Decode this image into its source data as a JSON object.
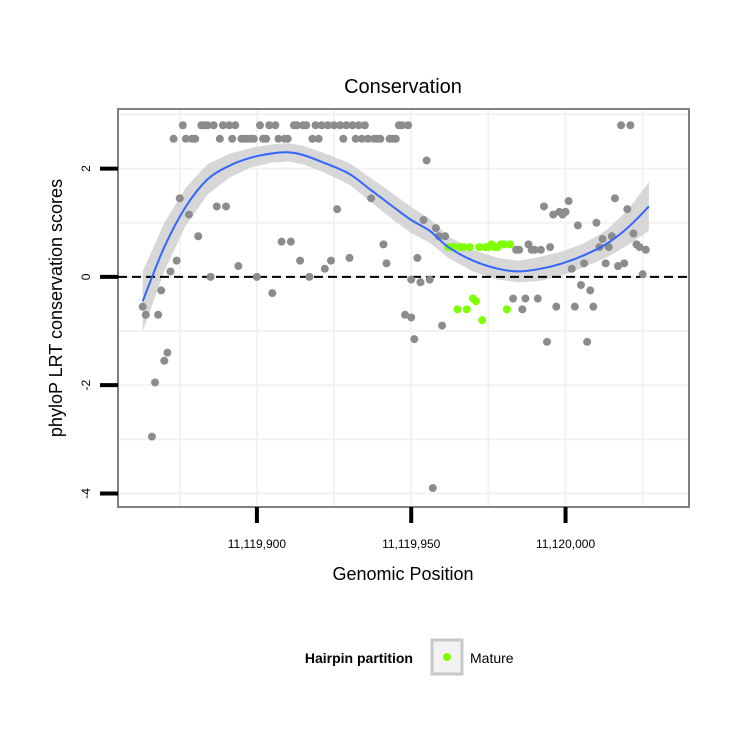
{
  "chart_data": {
    "type": "scatter",
    "title": "Conservation",
    "xlabel": "Genomic Position",
    "ylabel": "phyloP LRT conservation scores",
    "xlim": [
      11119855,
      11120040
    ],
    "ylim": [
      -4.25,
      3.1
    ],
    "x_ticks": [
      {
        "value": 11119900,
        "label": "11,119,900"
      },
      {
        "value": 11119950,
        "label": "11,119,950"
      },
      {
        "value": 11120000,
        "label": "11,120,000"
      }
    ],
    "y_ticks": [
      {
        "value": -4,
        "label": "-4"
      },
      {
        "value": -2,
        "label": "-2"
      },
      {
        "value": 0,
        "label": "0"
      },
      {
        "value": 2,
        "label": "2"
      }
    ],
    "hline": 0,
    "legend": {
      "title": "Hairpin partition",
      "entries": [
        {
          "label": "Mature",
          "color": "#7fff00"
        }
      ],
      "position": "bottom"
    },
    "colors": {
      "point": "#8c8c8c",
      "mature": "#7fff00",
      "smooth": "#3366ff",
      "band": "#d3d3d3",
      "grid": "#f2f2f2",
      "frame": "#808080"
    },
    "series": [
      {
        "name": "Other",
        "points": [
          [
            11119863,
            -0.55
          ],
          [
            11119864,
            -0.7
          ],
          [
            11119866,
            -2.95
          ],
          [
            11119867,
            -1.95
          ],
          [
            11119868,
            -0.7
          ],
          [
            11119869,
            -0.25
          ],
          [
            11119870,
            -1.55
          ],
          [
            11119871,
            -1.4
          ],
          [
            11119872,
            0.1
          ],
          [
            11119873,
            2.55
          ],
          [
            11119874,
            0.3
          ],
          [
            11119875,
            1.45
          ],
          [
            11119876,
            2.8
          ],
          [
            11119877,
            2.55
          ],
          [
            11119878,
            1.15
          ],
          [
            11119879,
            2.55
          ],
          [
            11119880,
            2.55
          ],
          [
            11119881,
            0.75
          ],
          [
            11119882,
            2.8
          ],
          [
            11119883,
            2.8
          ],
          [
            11119884,
            2.8
          ],
          [
            11119885,
            0.0
          ],
          [
            11119886,
            2.8
          ],
          [
            11119887,
            1.3
          ],
          [
            11119888,
            2.55
          ],
          [
            11119889,
            2.8
          ],
          [
            11119890,
            1.3
          ],
          [
            11119891,
            2.8
          ],
          [
            11119892,
            2.55
          ],
          [
            11119893,
            2.8
          ],
          [
            11119894,
            0.2
          ],
          [
            11119895,
            2.55
          ],
          [
            11119896,
            2.55
          ],
          [
            11119897,
            2.55
          ],
          [
            11119898,
            2.55
          ],
          [
            11119899,
            2.55
          ],
          [
            11119900,
            0.0
          ],
          [
            11119901,
            2.8
          ],
          [
            11119902,
            2.55
          ],
          [
            11119903,
            2.55
          ],
          [
            11119904,
            2.8
          ],
          [
            11119905,
            -0.3
          ],
          [
            11119906,
            2.8
          ],
          [
            11119907,
            2.55
          ],
          [
            11119908,
            0.65
          ],
          [
            11119909,
            2.55
          ],
          [
            11119910,
            2.55
          ],
          [
            11119911,
            0.65
          ],
          [
            11119912,
            2.8
          ],
          [
            11119913,
            2.8
          ],
          [
            11119914,
            0.3
          ],
          [
            11119915,
            2.8
          ],
          [
            11119916,
            2.8
          ],
          [
            11119917,
            0.0
          ],
          [
            11119918,
            2.55
          ],
          [
            11119919,
            2.8
          ],
          [
            11119920,
            2.55
          ],
          [
            11119921,
            2.8
          ],
          [
            11119922,
            0.15
          ],
          [
            11119923,
            2.8
          ],
          [
            11119924,
            0.3
          ],
          [
            11119925,
            2.8
          ],
          [
            11119926,
            1.25
          ],
          [
            11119927,
            2.8
          ],
          [
            11119928,
            2.55
          ],
          [
            11119929,
            2.8
          ],
          [
            11119930,
            0.35
          ],
          [
            11119931,
            2.8
          ],
          [
            11119932,
            2.55
          ],
          [
            11119933,
            2.8
          ],
          [
            11119934,
            2.55
          ],
          [
            11119935,
            2.8
          ],
          [
            11119936,
            2.55
          ],
          [
            11119937,
            1.45
          ],
          [
            11119938,
            2.55
          ],
          [
            11119939,
            2.55
          ],
          [
            11119940,
            2.55
          ],
          [
            11119941,
            0.6
          ],
          [
            11119942,
            0.25
          ],
          [
            11119943,
            2.55
          ],
          [
            11119944,
            2.55
          ],
          [
            11119945,
            2.55
          ],
          [
            11119946,
            2.8
          ],
          [
            11119947,
            2.8
          ],
          [
            11119948,
            -0.7
          ],
          [
            11119949,
            2.8
          ],
          [
            11119950,
            -0.75
          ],
          [
            11119950,
            -0.05
          ],
          [
            11119951,
            -1.15
          ],
          [
            11119952,
            0.35
          ],
          [
            11119953,
            -0.1
          ],
          [
            11119954,
            1.05
          ],
          [
            11119955,
            2.15
          ],
          [
            11119956,
            -0.05
          ],
          [
            11119957,
            -3.9
          ],
          [
            11119958,
            0.9
          ],
          [
            11119959,
            0.75
          ],
          [
            11119960,
            -0.9
          ],
          [
            11119961,
            0.75
          ],
          [
            11119983,
            -0.4
          ],
          [
            11119984,
            0.5
          ],
          [
            11119985,
            0.5
          ],
          [
            11119986,
            -0.6
          ],
          [
            11119987,
            -0.4
          ],
          [
            11119988,
            0.6
          ],
          [
            11119989,
            0.5
          ],
          [
            11119990,
            0.5
          ],
          [
            11119991,
            -0.4
          ],
          [
            11119992,
            0.5
          ],
          [
            11119993,
            1.3
          ],
          [
            11119994,
            -1.2
          ],
          [
            11119995,
            0.55
          ],
          [
            11119996,
            1.15
          ],
          [
            11119997,
            -0.55
          ],
          [
            11119998,
            1.2
          ],
          [
            11119999,
            1.15
          ],
          [
            11120000,
            1.2
          ],
          [
            11120001,
            1.4
          ],
          [
            11120002,
            0.15
          ],
          [
            11120003,
            -0.55
          ],
          [
            11120004,
            0.95
          ],
          [
            11120005,
            -0.15
          ],
          [
            11120006,
            0.25
          ],
          [
            11120007,
            -1.2
          ],
          [
            11120008,
            -0.25
          ],
          [
            11120009,
            -0.55
          ],
          [
            11120010,
            1.0
          ],
          [
            11120011,
            0.55
          ],
          [
            11120012,
            0.7
          ],
          [
            11120013,
            0.25
          ],
          [
            11120014,
            0.55
          ],
          [
            11120015,
            0.75
          ],
          [
            11120016,
            1.45
          ],
          [
            11120017,
            0.2
          ],
          [
            11120018,
            2.8
          ],
          [
            11120019,
            0.25
          ],
          [
            11120020,
            1.25
          ],
          [
            11120021,
            2.8
          ],
          [
            11120022,
            0.8
          ],
          [
            11120023,
            0.6
          ],
          [
            11120024,
            0.55
          ],
          [
            11120025,
            0.05
          ],
          [
            11120026,
            0.5
          ]
        ]
      },
      {
        "name": "Mature",
        "points": [
          [
            11119962,
            0.55
          ],
          [
            11119963,
            0.55
          ],
          [
            11119964,
            0.55
          ],
          [
            11119965,
            -0.6
          ],
          [
            11119966,
            0.55
          ],
          [
            11119967,
            0.55
          ],
          [
            11119968,
            -0.6
          ],
          [
            11119969,
            0.55
          ],
          [
            11119970,
            -0.4
          ],
          [
            11119971,
            -0.45
          ],
          [
            11119972,
            0.55
          ],
          [
            11119973,
            -0.8
          ],
          [
            11119974,
            0.55
          ],
          [
            11119975,
            0.55
          ],
          [
            11119976,
            0.6
          ],
          [
            11119977,
            0.55
          ],
          [
            11119978,
            0.55
          ],
          [
            11119979,
            0.6
          ],
          [
            11119980,
            0.6
          ],
          [
            11119981,
            -0.6
          ],
          [
            11119982,
            0.6
          ]
        ]
      }
    ],
    "smooth": {
      "x": [
        11119863,
        11119870,
        11119877,
        11119884,
        11119891,
        11119898,
        11119905,
        11119910,
        11119915,
        11119922,
        11119930,
        11119937,
        11119944,
        11119950,
        11119956,
        11119962,
        11119970,
        11119978,
        11119985,
        11119992,
        11119999,
        11120006,
        11120013,
        11120020,
        11120027
      ],
      "y": [
        -0.45,
        0.55,
        1.3,
        1.8,
        2.05,
        2.2,
        2.28,
        2.3,
        2.25,
        2.1,
        1.9,
        1.6,
        1.3,
        1.05,
        0.85,
        0.55,
        0.3,
        0.15,
        0.1,
        0.15,
        0.25,
        0.4,
        0.6,
        0.9,
        1.3
      ],
      "se": [
        0.55,
        0.45,
        0.35,
        0.28,
        0.22,
        0.18,
        0.17,
        0.17,
        0.17,
        0.18,
        0.2,
        0.22,
        0.24,
        0.24,
        0.22,
        0.2,
        0.2,
        0.2,
        0.2,
        0.22,
        0.22,
        0.22,
        0.25,
        0.32,
        0.45
      ]
    }
  }
}
